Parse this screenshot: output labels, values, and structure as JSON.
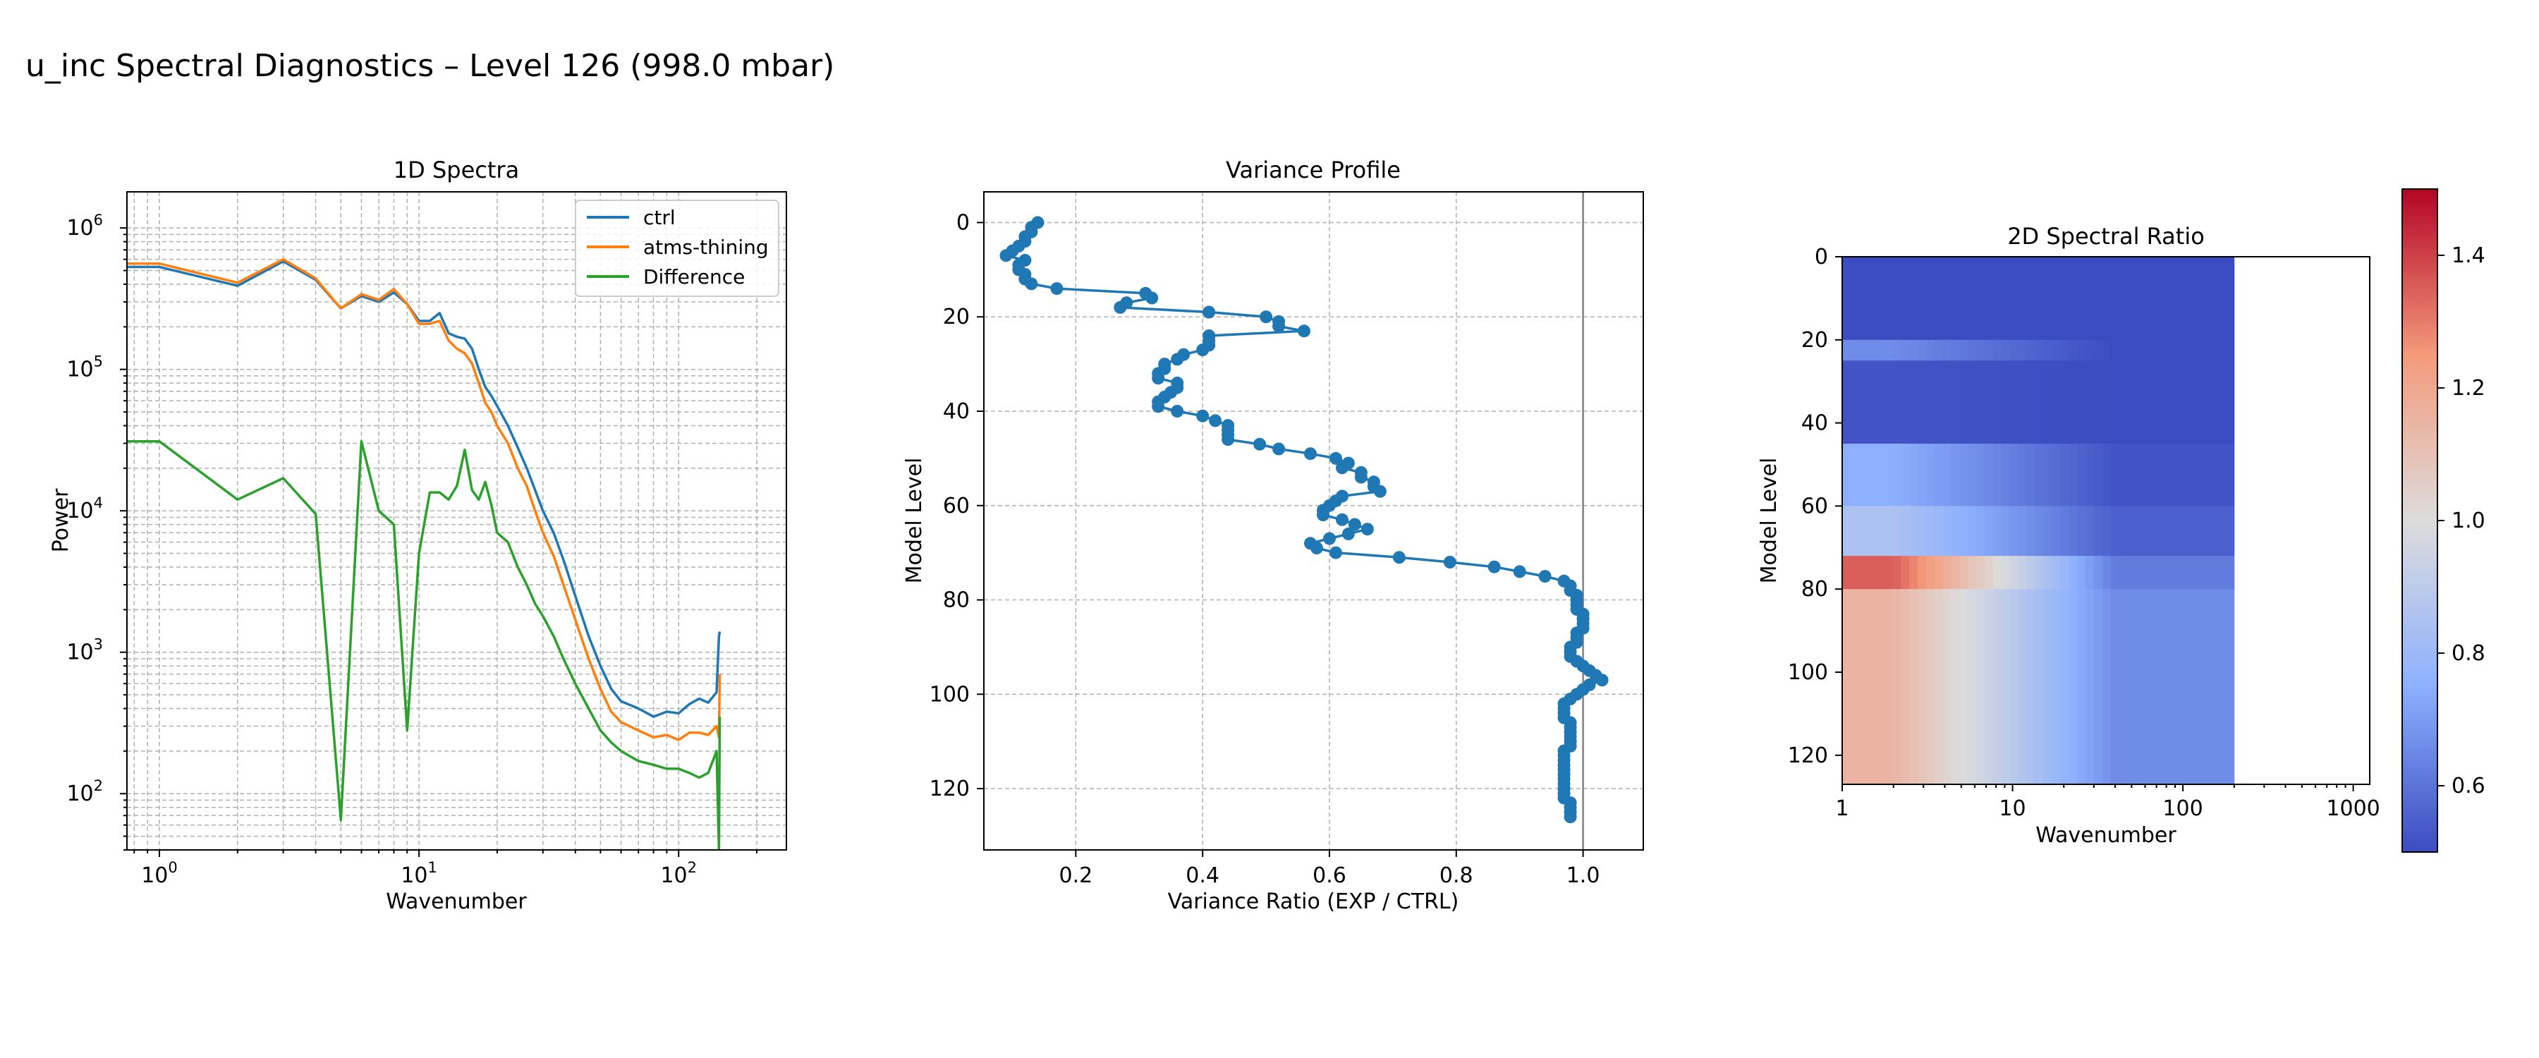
{
  "figure": {
    "suptitle": "u_inc Spectral Diagnostics – Level 126 (998.0 mbar)"
  },
  "chart_data": [
    {
      "type": "line",
      "title": "1D Spectra",
      "xlabel": "Wavenumber",
      "ylabel": "Power",
      "xscale": "log",
      "yscale": "log",
      "xlim": [
        0.75,
        260
      ],
      "ylim": [
        40,
        1800000
      ],
      "xticks": [
        {
          "v": 1,
          "base": "10",
          "exp": "0"
        },
        {
          "v": 10,
          "base": "10",
          "exp": "1"
        },
        {
          "v": 100,
          "base": "10",
          "exp": "2"
        }
      ],
      "yticks": [
        {
          "v": 100,
          "base": "10",
          "exp": "2"
        },
        {
          "v": 1000,
          "base": "10",
          "exp": "3"
        },
        {
          "v": 10000,
          "base": "10",
          "exp": "4"
        },
        {
          "v": 100000,
          "base": "10",
          "exp": "5"
        },
        {
          "v": 1000000,
          "base": "10",
          "exp": "6"
        }
      ],
      "grid": true,
      "legend": "top-right",
      "series": [
        {
          "name": "ctrl",
          "color": "#1f77b4",
          "x": [
            0.75,
            1,
            2,
            3,
            4,
            5,
            6,
            7,
            8,
            9,
            10,
            11,
            12,
            13,
            14,
            15,
            16,
            17,
            18,
            19,
            20,
            22,
            24,
            26,
            28,
            30,
            33,
            36,
            40,
            45,
            50,
            55,
            60,
            70,
            80,
            90,
            100,
            110,
            120,
            130,
            140,
            143,
            144
          ],
          "y": [
            530000,
            530000,
            390000,
            580000,
            430000,
            270000,
            330000,
            300000,
            350000,
            290000,
            220000,
            220000,
            250000,
            180000,
            170000,
            165000,
            140000,
            100000,
            75000,
            65000,
            55000,
            40000,
            28000,
            20000,
            14000,
            10000,
            7000,
            4500,
            2500,
            1300,
            800,
            550,
            450,
            400,
            350,
            380,
            370,
            430,
            470,
            440,
            520,
            1300,
            1400
          ]
        },
        {
          "name": "atms-thining",
          "color": "#ff7f0e",
          "x": [
            0.75,
            1,
            2,
            3,
            4,
            5,
            6,
            7,
            8,
            9,
            10,
            11,
            12,
            13,
            14,
            15,
            16,
            17,
            18,
            19,
            20,
            22,
            24,
            26,
            28,
            30,
            33,
            36,
            40,
            45,
            50,
            55,
            60,
            70,
            80,
            90,
            100,
            110,
            120,
            130,
            140,
            143,
            144
          ],
          "y": [
            560000,
            560000,
            410000,
            600000,
            440000,
            270000,
            340000,
            310000,
            370000,
            290000,
            210000,
            210000,
            220000,
            160000,
            140000,
            130000,
            110000,
            80000,
            58000,
            50000,
            40000,
            30000,
            20000,
            15000,
            10000,
            7000,
            4800,
            3000,
            1700,
            900,
            550,
            380,
            320,
            280,
            250,
            260,
            240,
            270,
            270,
            260,
            300,
            250,
            700
          ]
        },
        {
          "name": "Difference",
          "color": "#2ca02c",
          "x": [
            0.75,
            1,
            2,
            3,
            4,
            5,
            6,
            7,
            8,
            9,
            10,
            11,
            12,
            13,
            14,
            15,
            16,
            17,
            18,
            19,
            20,
            22,
            24,
            26,
            28,
            30,
            33,
            36,
            40,
            45,
            50,
            55,
            60,
            70,
            80,
            90,
            100,
            110,
            120,
            130,
            140,
            143,
            144
          ],
          "y": [
            31000,
            31000,
            12000,
            17000,
            9500,
            65,
            31000,
            10000,
            8000,
            280,
            5000,
            13500,
            13500,
            12000,
            15000,
            27000,
            14000,
            12000,
            16000,
            11000,
            7000,
            6000,
            4000,
            3000,
            2200,
            1800,
            1300,
            900,
            600,
            400,
            280,
            230,
            200,
            170,
            160,
            150,
            150,
            140,
            130,
            140,
            200,
            40,
            350
          ]
        }
      ]
    },
    {
      "type": "line",
      "title": "Variance Profile",
      "xlabel": "Variance Ratio (EXP / CTRL)",
      "ylabel": "Model Level",
      "xlim": [
        0.055,
        1.095
      ],
      "ylim": [
        133,
        -6.5
      ],
      "y_inverted": true,
      "xticks": [
        0.2,
        0.4,
        0.6,
        0.8,
        1.0
      ],
      "xtick_labels": [
        "0.2",
        "0.4",
        "0.6",
        "0.8",
        "1.0"
      ],
      "yticks": [
        0,
        20,
        40,
        60,
        80,
        100,
        120
      ],
      "grid": true,
      "vline_x": 1.0,
      "series": [
        {
          "name": "",
          "color": "#1f77b4",
          "marker": "o",
          "y": [
            0,
            1,
            2,
            3,
            4,
            5,
            6,
            7,
            8,
            9,
            10,
            11,
            12,
            13,
            14,
            15,
            16,
            17,
            18,
            19,
            20,
            21,
            22,
            23,
            24,
            25,
            26,
            27,
            28,
            29,
            30,
            31,
            32,
            33,
            34,
            35,
            36,
            37,
            38,
            39,
            40,
            41,
            42,
            43,
            44,
            45,
            46,
            47,
            48,
            49,
            50,
            51,
            52,
            53,
            54,
            55,
            56,
            57,
            58,
            59,
            60,
            61,
            62,
            63,
            64,
            65,
            66,
            67,
            68,
            69,
            70,
            71,
            72,
            73,
            74,
            75,
            76,
            77,
            78,
            79,
            80,
            81,
            82,
            83,
            84,
            85,
            86,
            87,
            88,
            89,
            90,
            91,
            92,
            93,
            94,
            95,
            96,
            97,
            98,
            99,
            100,
            101,
            102,
            103,
            104,
            105,
            106,
            107,
            108,
            109,
            110,
            111,
            112,
            113,
            114,
            115,
            116,
            117,
            118,
            119,
            120,
            121,
            122,
            123,
            124,
            125,
            126
          ],
          "x": [
            0.14,
            0.13,
            0.13,
            0.12,
            0.12,
            0.11,
            0.1,
            0.09,
            0.12,
            0.11,
            0.11,
            0.12,
            0.12,
            0.13,
            0.17,
            0.31,
            0.32,
            0.28,
            0.27,
            0.41,
            0.5,
            0.52,
            0.52,
            0.56,
            0.41,
            0.41,
            0.41,
            0.4,
            0.37,
            0.36,
            0.34,
            0.34,
            0.33,
            0.33,
            0.36,
            0.36,
            0.35,
            0.34,
            0.33,
            0.33,
            0.36,
            0.4,
            0.42,
            0.44,
            0.44,
            0.44,
            0.44,
            0.49,
            0.52,
            0.57,
            0.61,
            0.63,
            0.62,
            0.65,
            0.65,
            0.67,
            0.67,
            0.68,
            0.62,
            0.61,
            0.6,
            0.59,
            0.59,
            0.62,
            0.64,
            0.66,
            0.63,
            0.6,
            0.57,
            0.58,
            0.61,
            0.71,
            0.79,
            0.86,
            0.9,
            0.94,
            0.97,
            0.98,
            0.98,
            0.99,
            0.99,
            0.99,
            0.99,
            1.0,
            1.0,
            1.0,
            1.0,
            0.99,
            0.99,
            0.99,
            0.98,
            0.98,
            0.98,
            0.99,
            1.0,
            1.01,
            1.02,
            1.03,
            1.01,
            1.0,
            0.99,
            0.98,
            0.97,
            0.97,
            0.97,
            0.97,
            0.98,
            0.98,
            0.98,
            0.98,
            0.98,
            0.98,
            0.97,
            0.97,
            0.97,
            0.97,
            0.97,
            0.97,
            0.97,
            0.97,
            0.97,
            0.97,
            0.97,
            0.98,
            0.98,
            0.98,
            0.98
          ]
        }
      ]
    },
    {
      "type": "heatmap",
      "title": "2D Spectral Ratio",
      "xlabel": "Wavenumber",
      "ylabel": "Model Level",
      "xscale": "log",
      "xlim": [
        1,
        1250
      ],
      "ylim": [
        127,
        0
      ],
      "y_inverted": true,
      "x_data_max": 200,
      "xticks": [
        1,
        10,
        100,
        1000
      ],
      "xtick_labels": [
        "1",
        "10",
        "100",
        "1000"
      ],
      "yticks": [
        0,
        20,
        40,
        60,
        80,
        100,
        120
      ],
      "colormap": "coolwarm",
      "vmin": 0.5,
      "vmax": 1.5,
      "colorbar_ticks": [
        0.6,
        0.8,
        1.0,
        1.2,
        1.4
      ],
      "colorbar_tick_labels": [
        "0.6",
        "0.8",
        "1.0",
        "1.2",
        "1.4"
      ],
      "level_bands": [
        {
          "from": 0,
          "to": 20,
          "low_k": 0.5,
          "high_k": 0.5
        },
        {
          "from": 20,
          "to": 25,
          "low_k": 0.66,
          "high_k": 0.5
        },
        {
          "from": 25,
          "to": 45,
          "low_k": 0.52,
          "high_k": 0.5
        },
        {
          "from": 45,
          "to": 60,
          "low_k": 0.75,
          "high_k": 0.52
        },
        {
          "from": 60,
          "to": 72,
          "low_k": 0.85,
          "high_k": 0.55
        },
        {
          "from": 72,
          "to": 80,
          "low_k": 1.35,
          "high_k": 0.62
        },
        {
          "from": 80,
          "to": 127,
          "low_k": 1.15,
          "high_k": 0.66
        }
      ]
    }
  ]
}
